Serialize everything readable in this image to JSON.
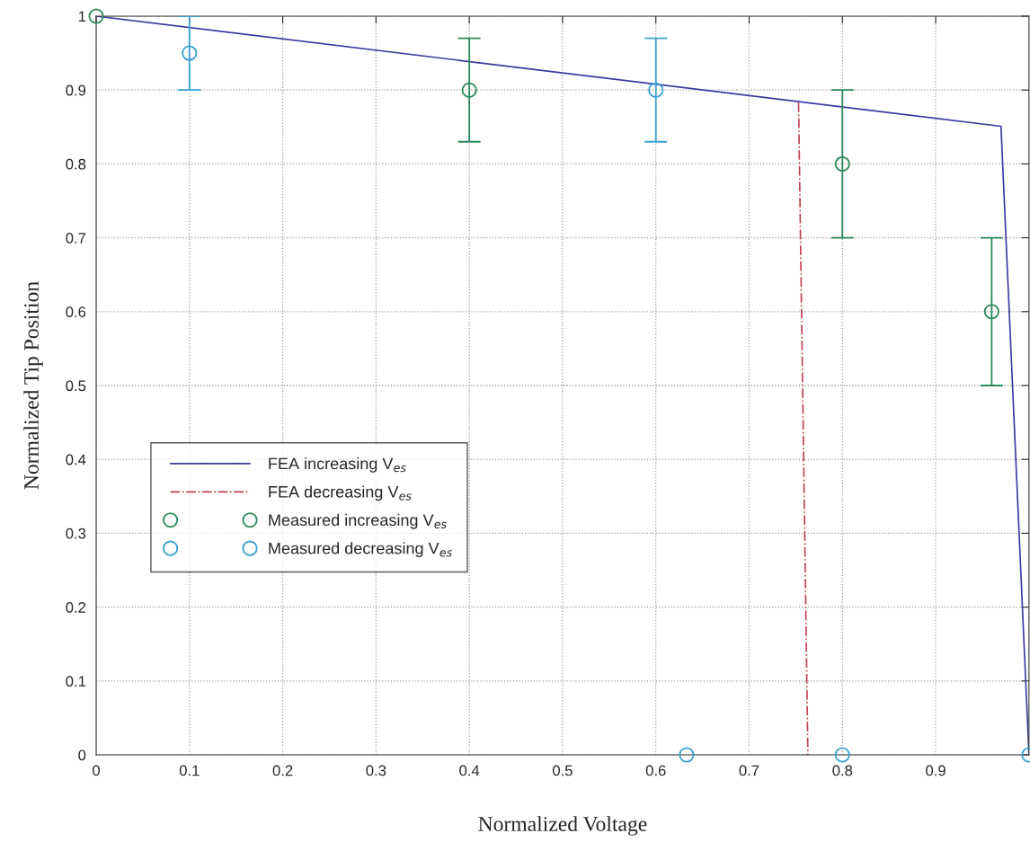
{
  "chart_data": {
    "type": "line",
    "xlabel": "Normalized Voltage",
    "ylabel": "Normalized Tip Position",
    "xlim": [
      0,
      1
    ],
    "ylim": [
      0,
      1
    ],
    "xticks": [
      0,
      0.1,
      0.2,
      0.3,
      0.4,
      0.5,
      0.6,
      0.7,
      0.8,
      0.9
    ],
    "yticks": [
      0,
      0.1,
      0.2,
      0.3,
      0.4,
      0.5,
      0.6,
      0.7,
      0.8,
      0.9,
      1
    ],
    "grid": true,
    "legend": "center left",
    "series": [
      {
        "name": "FEA increasing V$_{es}$",
        "color": "#3a3aa0",
        "line_style": "solid",
        "marker": "none",
        "x": [
          0,
          0.97,
          1.0
        ],
        "values": [
          1,
          0.851,
          0
        ]
      },
      {
        "name": "FEA decreasing V$_{es}$",
        "color": "#c04050",
        "line_style": "dashdot",
        "marker": "none",
        "x": [
          0.753,
          0.763
        ],
        "values": [
          0.883,
          0
        ]
      },
      {
        "name": "Measured increasing V$_{es}$",
        "type": "scatter",
        "color": "#2a8a5a",
        "marker": "circle",
        "x": [
          0,
          0.4,
          0.8,
          0.96
        ],
        "values": [
          1,
          0.9,
          0.8,
          0.6
        ],
        "errors": [
          null,
          0.07,
          0.1,
          0.1
        ]
      },
      {
        "name": "Measured decreasing V$_{es}$",
        "type": "scatter",
        "color": "#3aa0d0",
        "marker": "circle",
        "x": [
          0.1,
          0.6,
          0.633,
          0.8,
          1.0
        ],
        "values": [
          0.95,
          0.9,
          0,
          0,
          0
        ],
        "errors": [
          0.05,
          0.07,
          null,
          null,
          null
        ]
      }
    ]
  }
}
